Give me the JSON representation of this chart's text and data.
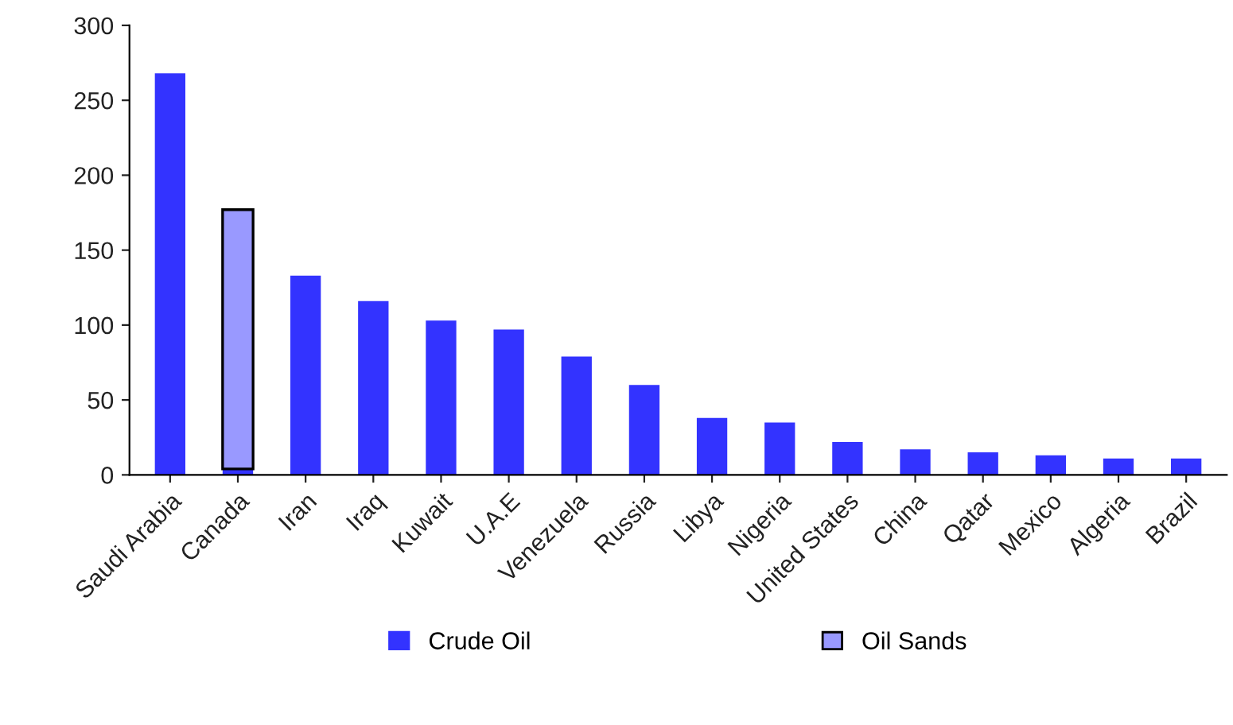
{
  "chart_data": {
    "type": "bar",
    "stacked": true,
    "categories": [
      "Saudi Arabia",
      "Canada",
      "Iran",
      "Iraq",
      "Kuwait",
      "U.A.E",
      "Venezuela",
      "Russia",
      "Libya",
      "Nigeria",
      "United States",
      "China",
      "Qatar",
      "Mexico",
      "Algeria",
      "Brazil"
    ],
    "series": [
      {
        "name": "Crude Oil",
        "color": "#3333ff",
        "values": [
          268,
          4,
          133,
          116,
          103,
          97,
          79,
          60,
          38,
          35,
          22,
          17,
          15,
          13,
          11,
          11
        ]
      },
      {
        "name": "Oil Sands",
        "color": "#9999ff",
        "values": [
          null,
          173,
          null,
          null,
          null,
          null,
          null,
          null,
          null,
          null,
          null,
          null,
          null,
          null,
          null,
          null
        ]
      }
    ],
    "ylim": [
      0,
      300
    ],
    "yticks": [
      0,
      50,
      100,
      150,
      200,
      250,
      300
    ],
    "grid": false,
    "legend": "bottom"
  }
}
